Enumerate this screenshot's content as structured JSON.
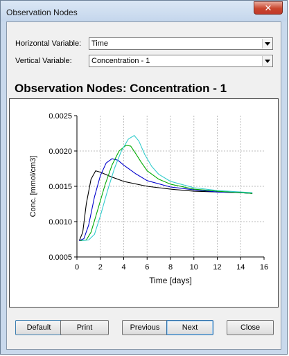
{
  "window": {
    "title": "Observation Nodes",
    "close_glyph": "✕"
  },
  "form": {
    "horizontal_label": "Horizontal Variable:",
    "horizontal_value": "Time",
    "vertical_label": "Vertical Variable:",
    "vertical_value": "Concentration - 1"
  },
  "chart_title": "Observation Nodes: Concentration - 1",
  "chart_data": {
    "type": "line",
    "title": "Observation Nodes: Concentration - 1",
    "xlabel": "Time [days]",
    "ylabel": "Conc. [mmol/cm3]",
    "xlim": [
      0,
      16
    ],
    "ylim": [
      0.0005,
      0.0025
    ],
    "x_ticks": [
      "0",
      "2",
      "4",
      "6",
      "8",
      "10",
      "12",
      "14",
      "16"
    ],
    "y_ticks": [
      "0.0005",
      "0.0010",
      "0.0015",
      "0.0020",
      "0.0025"
    ],
    "grid": true,
    "series": [
      {
        "color": "#000000",
        "x": [
          0.2,
          0.5,
          0.8,
          1.2,
          1.6,
          2.0,
          3.0,
          4.0,
          6.0,
          8.0,
          10.0,
          12.0,
          14.0,
          15.0
        ],
        "y": [
          0.00073,
          0.00085,
          0.00125,
          0.0016,
          0.00172,
          0.0017,
          0.00163,
          0.00157,
          0.0015,
          0.00146,
          0.00143,
          0.00142,
          0.00141,
          0.0014
        ]
      },
      {
        "color": "#0000cc",
        "x": [
          0.2,
          0.6,
          1.0,
          1.5,
          2.0,
          2.5,
          3.0,
          3.5,
          4.0,
          5.0,
          6.0,
          8.0,
          10.0,
          12.0,
          14.0,
          15.0
        ],
        "y": [
          0.00073,
          0.00076,
          0.00095,
          0.00135,
          0.00165,
          0.00183,
          0.00189,
          0.00187,
          0.0018,
          0.00168,
          0.00158,
          0.00149,
          0.00145,
          0.00142,
          0.00141,
          0.0014
        ]
      },
      {
        "color": "#00aa00",
        "x": [
          0.3,
          0.8,
          1.2,
          1.8,
          2.4,
          3.0,
          3.6,
          4.2,
          4.6,
          5.0,
          5.5,
          6.0,
          7.0,
          8.0,
          10.0,
          12.0,
          14.0,
          15.0
        ],
        "y": [
          0.00073,
          0.00074,
          0.00085,
          0.00118,
          0.00152,
          0.0018,
          0.002,
          0.00208,
          0.00207,
          0.00197,
          0.00184,
          0.00172,
          0.0016,
          0.00153,
          0.00146,
          0.00143,
          0.00141,
          0.0014
        ]
      },
      {
        "color": "#33cccc",
        "x": [
          0.4,
          1.0,
          1.5,
          2.0,
          2.6,
          3.2,
          3.8,
          4.4,
          4.9,
          5.3,
          5.8,
          6.4,
          7.0,
          8.0,
          10.0,
          12.0,
          14.0,
          15.0
        ],
        "y": [
          0.00073,
          0.00074,
          0.00082,
          0.00108,
          0.00143,
          0.00175,
          0.002,
          0.00217,
          0.00222,
          0.00214,
          0.00195,
          0.00178,
          0.00167,
          0.00157,
          0.00148,
          0.00144,
          0.00142,
          0.00141
        ]
      }
    ]
  },
  "buttons": {
    "default": "Default",
    "print": "Print",
    "previous": "Previous",
    "next": "Next",
    "close": "Close"
  }
}
